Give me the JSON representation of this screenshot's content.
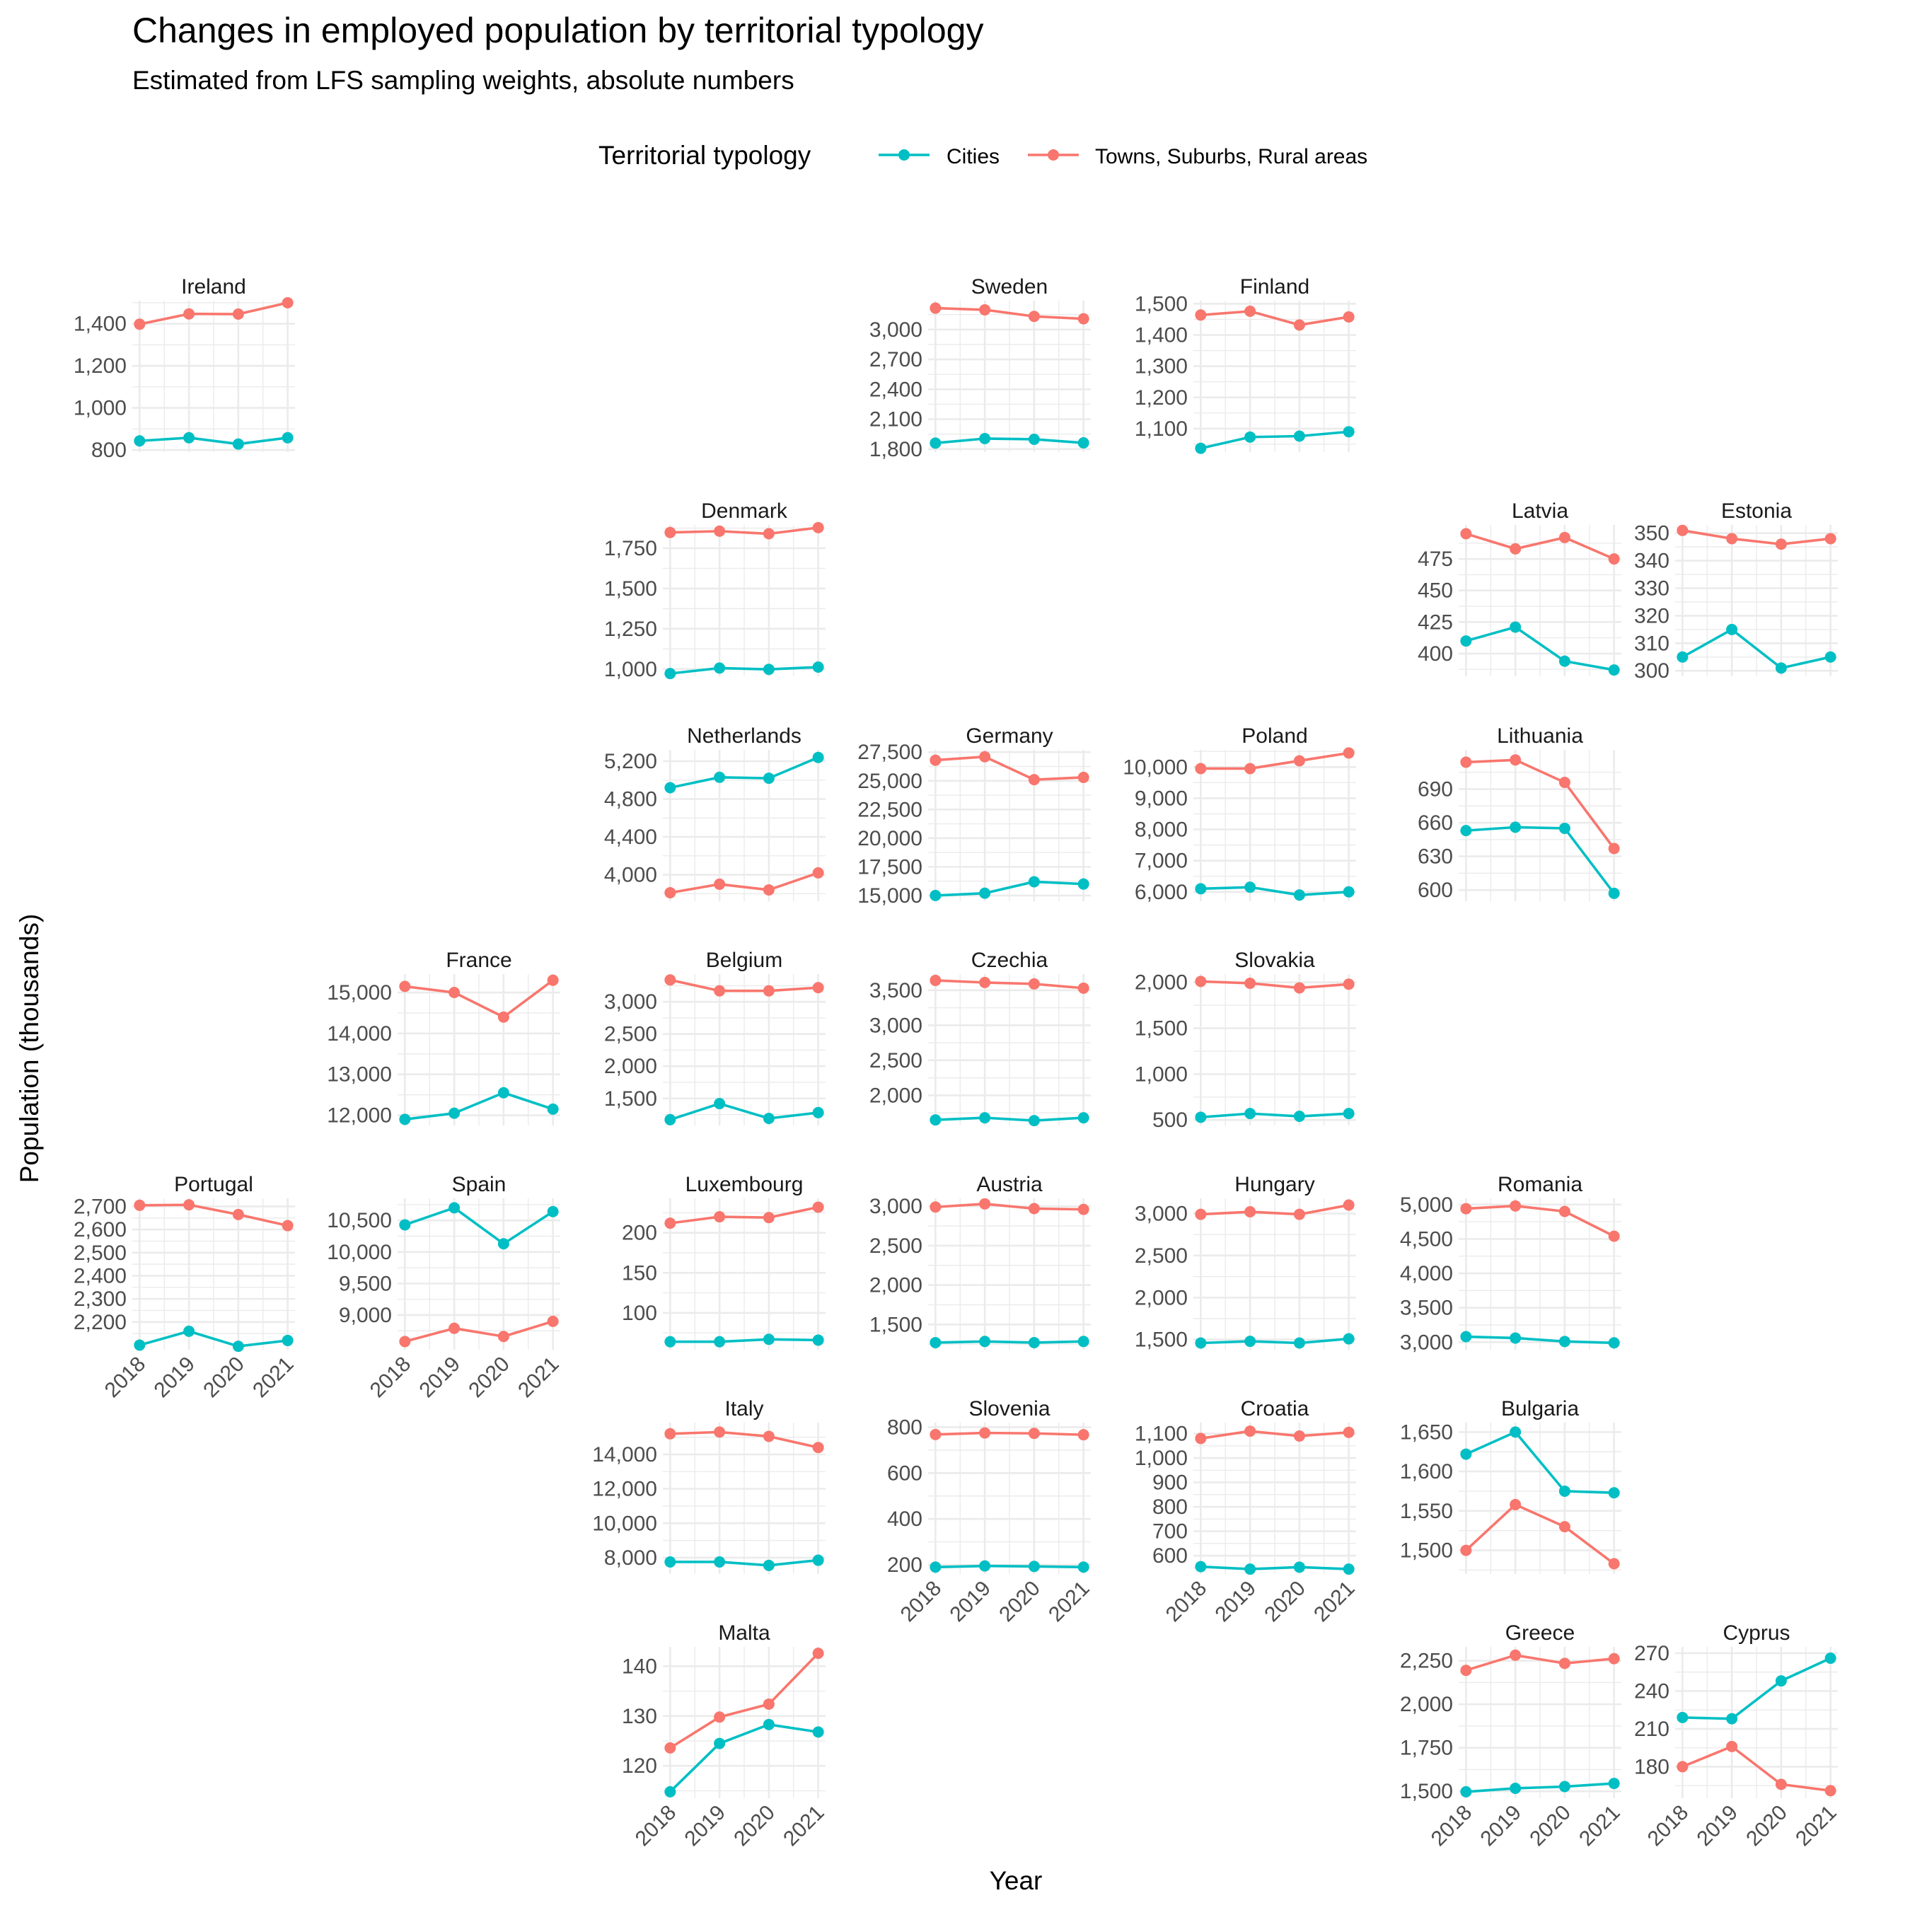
{
  "chart_data": {
    "type": "line",
    "title": "Changes in employed population by territorial typology",
    "subtitle": "Estimated from LFS sampling weights, absolute numbers",
    "xlabel": "Year",
    "ylabel": "Population (thousands)",
    "legend": {
      "title": "Territorial typology",
      "position": "top",
      "entries": [
        {
          "name": "Cities",
          "color": "#00BFC4"
        },
        {
          "name": "Towns, Suburbs, Rural areas",
          "color": "#F8766D"
        }
      ]
    },
    "categories": [
      "2018",
      "2019",
      "2020",
      "2021"
    ],
    "grid": true,
    "panels": [
      {
        "name": "Ireland",
        "ylim": [
          790,
          1510
        ],
        "yticks": [
          800,
          1000,
          1200,
          1400
        ],
        "x_labels": false,
        "series": [
          {
            "name": "Cities",
            "values": [
              843,
              858,
              828,
              858
            ]
          },
          {
            "name": "Towns, Suburbs, Rural areas",
            "values": [
              1398,
              1447,
              1446,
              1500
            ]
          }
        ]
      },
      {
        "name": "Sweden",
        "ylim": [
          1770,
          3290
        ],
        "yticks": [
          1800,
          2100,
          2400,
          2700,
          3000
        ],
        "x_labels": false,
        "series": [
          {
            "name": "Cities",
            "values": [
              1860,
              1905,
              1898,
              1862
            ]
          },
          {
            "name": "Towns, Suburbs, Rural areas",
            "values": [
              3215,
              3198,
              3132,
              3108
            ]
          }
        ]
      },
      {
        "name": "Finland",
        "ylim": [
          1025,
          1510
        ],
        "yticks": [
          1100,
          1200,
          1300,
          1400,
          1500
        ],
        "x_labels": false,
        "series": [
          {
            "name": "Cities",
            "values": [
              1037,
              1073,
              1076,
              1090
            ]
          },
          {
            "name": "Towns, Suburbs, Rural areas",
            "values": [
              1464,
              1476,
              1432,
              1458
            ]
          }
        ]
      },
      {
        "name": "Denmark",
        "ylim": [
          955,
          1895
        ],
        "yticks": [
          1000,
          1250,
          1500,
          1750
        ],
        "x_labels": false,
        "series": [
          {
            "name": "Cities",
            "values": [
              972,
              1006,
              998,
              1012
            ]
          },
          {
            "name": "Towns, Suburbs, Rural areas",
            "values": [
              1848,
              1856,
              1840,
              1878
            ]
          }
        ]
      },
      {
        "name": "Latvia",
        "ylim": [
          382,
          502
        ],
        "yticks": [
          400,
          425,
          450,
          475
        ],
        "x_labels": false,
        "series": [
          {
            "name": "Cities",
            "values": [
              410,
              421,
              394,
              387
            ]
          },
          {
            "name": "Towns, Suburbs, Rural areas",
            "values": [
              495,
              483,
              492,
              475
            ]
          }
        ]
      },
      {
        "name": "Estonia",
        "ylim": [
          298,
          353
        ],
        "yticks": [
          300,
          310,
          320,
          330,
          340,
          350
        ],
        "x_labels": false,
        "series": [
          {
            "name": "Cities",
            "values": [
              305,
              315,
              301,
              305
            ]
          },
          {
            "name": "Towns, Suburbs, Rural areas",
            "values": [
              351,
              348,
              346,
              348
            ]
          }
        ]
      },
      {
        "name": "Netherlands",
        "ylim": [
          3720,
          5320
        ],
        "yticks": [
          4000,
          4400,
          4800,
          5200
        ],
        "x_labels": false,
        "series": [
          {
            "name": "Cities",
            "values": [
              4920,
              5030,
              5020,
              5240
            ]
          },
          {
            "name": "Towns, Suburbs, Rural areas",
            "values": [
              3810,
              3900,
              3840,
              4020
            ]
          }
        ]
      },
      {
        "name": "Germany",
        "ylim": [
          14500,
          27700
        ],
        "yticks": [
          15000,
          17500,
          20000,
          22500,
          25000,
          27500
        ],
        "x_labels": false,
        "series": [
          {
            "name": "Cities",
            "values": [
              15000,
              15200,
              16200,
              16000
            ]
          },
          {
            "name": "Towns, Suburbs, Rural areas",
            "values": [
              26800,
              27100,
              25100,
              25300
            ]
          }
        ]
      },
      {
        "name": "Poland",
        "ylim": [
          5700,
          10550
        ],
        "yticks": [
          6000,
          7000,
          8000,
          9000,
          10000
        ],
        "x_labels": false,
        "series": [
          {
            "name": "Cities",
            "values": [
              6100,
              6150,
              5900,
              6000
            ]
          },
          {
            "name": "Towns, Suburbs, Rural areas",
            "values": [
              9950,
              9950,
              10200,
              10450
            ]
          }
        ]
      },
      {
        "name": "Lithuania",
        "ylim": [
          590,
          725
        ],
        "yticks": [
          600,
          630,
          660,
          690
        ],
        "x_labels": false,
        "series": [
          {
            "name": "Cities",
            "values": [
              653,
              656,
              655,
              597
            ]
          },
          {
            "name": "Towns, Suburbs, Rural areas",
            "values": [
              714,
              716,
              696,
              637
            ]
          }
        ]
      },
      {
        "name": "France",
        "ylim": [
          11750,
          15450
        ],
        "yticks": [
          12000,
          13000,
          14000,
          15000
        ],
        "x_labels": false,
        "series": [
          {
            "name": "Cities",
            "values": [
              11900,
              12050,
              12550,
              12150
            ]
          },
          {
            "name": "Towns, Suburbs, Rural areas",
            "values": [
              15150,
              15000,
              14400,
              15300
            ]
          }
        ]
      },
      {
        "name": "Belgium",
        "ylim": [
          1080,
          3430
        ],
        "yticks": [
          1500,
          2000,
          2500,
          3000
        ],
        "x_labels": false,
        "series": [
          {
            "name": "Cities",
            "values": [
              1170,
              1420,
              1190,
              1280
            ]
          },
          {
            "name": "Towns, Suburbs, Rural areas",
            "values": [
              3340,
              3170,
              3170,
              3220
            ]
          }
        ]
      },
      {
        "name": "Czechia",
        "ylim": [
          1570,
          3730
        ],
        "yticks": [
          2000,
          2500,
          3000,
          3500
        ],
        "x_labels": false,
        "series": [
          {
            "name": "Cities",
            "values": [
              1650,
              1680,
              1640,
              1680
            ]
          },
          {
            "name": "Towns, Suburbs, Rural areas",
            "values": [
              3640,
              3610,
              3590,
              3530
            ]
          }
        ]
      },
      {
        "name": "Slovakia",
        "ylim": [
          440,
          2090
        ],
        "yticks": [
          500,
          1000,
          1500,
          2000
        ],
        "x_labels": false,
        "series": [
          {
            "name": "Cities",
            "values": [
              530,
              570,
              540,
              570
            ]
          },
          {
            "name": "Towns, Suburbs, Rural areas",
            "values": [
              2010,
              1990,
              1940,
              1980
            ]
          }
        ]
      },
      {
        "name": "Portugal",
        "ylim": [
          2080,
          2735
        ],
        "yticks": [
          2200,
          2300,
          2400,
          2500,
          2600,
          2700
        ],
        "x_labels": true,
        "series": [
          {
            "name": "Cities",
            "values": [
              2100,
              2160,
              2095,
              2120
            ]
          },
          {
            "name": "Towns, Suburbs, Rural areas",
            "values": [
              2705,
              2707,
              2665,
              2617
            ]
          }
        ]
      },
      {
        "name": "Spain",
        "ylim": [
          8450,
          10850
        ],
        "yticks": [
          9000,
          9500,
          10000,
          10500
        ],
        "x_labels": true,
        "series": [
          {
            "name": "Cities",
            "values": [
              10430,
              10700,
              10130,
              10640
            ]
          },
          {
            "name": "Towns, Suburbs, Rural areas",
            "values": [
              8580,
              8790,
              8660,
              8900
            ]
          }
        ]
      },
      {
        "name": "Luxembourg",
        "ylim": [
          54,
          243
        ],
        "yticks": [
          100,
          150,
          200
        ],
        "x_labels": false,
        "series": [
          {
            "name": "Cities",
            "values": [
              64,
              64,
              67,
              66
            ]
          },
          {
            "name": "Towns, Suburbs, Rural areas",
            "values": [
              212,
              220,
              219,
              232
            ]
          }
        ]
      },
      {
        "name": "Austria",
        "ylim": [
          1180,
          3100
        ],
        "yticks": [
          1500,
          2000,
          2500,
          3000
        ],
        "x_labels": false,
        "series": [
          {
            "name": "Cities",
            "values": [
              1270,
              1285,
              1270,
              1285
            ]
          },
          {
            "name": "Towns, Suburbs, Rural areas",
            "values": [
              2990,
              3030,
              2970,
              2960
            ]
          }
        ]
      },
      {
        "name": "Hungary",
        "ylim": [
          1380,
          3180
        ],
        "yticks": [
          1500,
          2000,
          2500,
          3000
        ],
        "x_labels": false,
        "series": [
          {
            "name": "Cities",
            "values": [
              1460,
              1480,
              1460,
              1510
            ]
          },
          {
            "name": "Towns, Suburbs, Rural areas",
            "values": [
              2990,
              3020,
              2990,
              3100
            ]
          }
        ]
      },
      {
        "name": "Romania",
        "ylim": [
          2890,
          5090
        ],
        "yticks": [
          3000,
          3500,
          4000,
          4500,
          5000
        ],
        "x_labels": false,
        "series": [
          {
            "name": "Cities",
            "values": [
              3080,
              3060,
              3010,
              2990
            ]
          },
          {
            "name": "Towns, Suburbs, Rural areas",
            "values": [
              4940,
              4980,
              4900,
              4540
            ]
          }
        ]
      },
      {
        "name": "Italy",
        "ylim": [
          7050,
          15850
        ],
        "yticks": [
          8000,
          10000,
          12000,
          14000
        ],
        "x_labels": false,
        "series": [
          {
            "name": "Cities",
            "values": [
              7750,
              7750,
              7550,
              7850
            ]
          },
          {
            "name": "Towns, Suburbs, Rural areas",
            "values": [
              15200,
              15300,
              15050,
              14400
            ]
          }
        ]
      },
      {
        "name": "Slovenia",
        "ylim": [
          160,
          820
        ],
        "yticks": [
          200,
          400,
          600,
          800
        ],
        "x_labels": true,
        "series": [
          {
            "name": "Cities",
            "values": [
              190,
              195,
              193,
              190
            ]
          },
          {
            "name": "Towns, Suburbs, Rural areas",
            "values": [
              768,
              775,
              773,
              767
            ]
          }
        ]
      },
      {
        "name": "Croatia",
        "ylim": [
          525,
          1145
        ],
        "yticks": [
          600,
          700,
          800,
          900,
          1000,
          1100
        ],
        "x_labels": true,
        "series": [
          {
            "name": "Cities",
            "values": [
              555,
              545,
              553,
              545
            ]
          },
          {
            "name": "Towns, Suburbs, Rural areas",
            "values": [
              1080,
              1110,
              1090,
              1105
            ]
          }
        ]
      },
      {
        "name": "Bulgaria",
        "ylim": [
          1470,
          1662
        ],
        "yticks": [
          1500,
          1550,
          1600,
          1650
        ],
        "x_labels": false,
        "series": [
          {
            "name": "Cities",
            "values": [
              1622,
              1650,
              1575,
              1573
            ]
          },
          {
            "name": "Towns, Suburbs, Rural areas",
            "values": [
              1500,
              1558,
              1530,
              1483
            ]
          }
        ]
      },
      {
        "name": "Malta",
        "ylim": [
          113.5,
          143.9
        ],
        "yticks": [
          120,
          130,
          140
        ],
        "x_labels": true,
        "series": [
          {
            "name": "Cities",
            "values": [
              114.8,
              124.5,
              128.3,
              126.8
            ]
          },
          {
            "name": "Towns, Suburbs, Rural areas",
            "values": [
              123.6,
              129.8,
              132.4,
              142.6
            ]
          }
        ]
      },
      {
        "name": "Greece",
        "ylim": [
          1460,
          2330
        ],
        "yticks": [
          1500,
          1750,
          2000,
          2250
        ],
        "x_labels": true,
        "series": [
          {
            "name": "Cities",
            "values": [
              1497,
              1517,
              1527,
              1545
            ]
          },
          {
            "name": "Towns, Suburbs, Rural areas",
            "values": [
              2195,
              2282,
              2235,
              2262
            ]
          }
        ]
      },
      {
        "name": "Cyprus",
        "ylim": [
          155,
          275
        ],
        "yticks": [
          180,
          210,
          240,
          270
        ],
        "x_labels": true,
        "series": [
          {
            "name": "Cities",
            "values": [
              219,
              218,
              248,
              266
            ]
          },
          {
            "name": "Towns, Suburbs, Rural areas",
            "values": [
              180,
              196,
              166,
              161
            ]
          }
        ]
      }
    ]
  }
}
